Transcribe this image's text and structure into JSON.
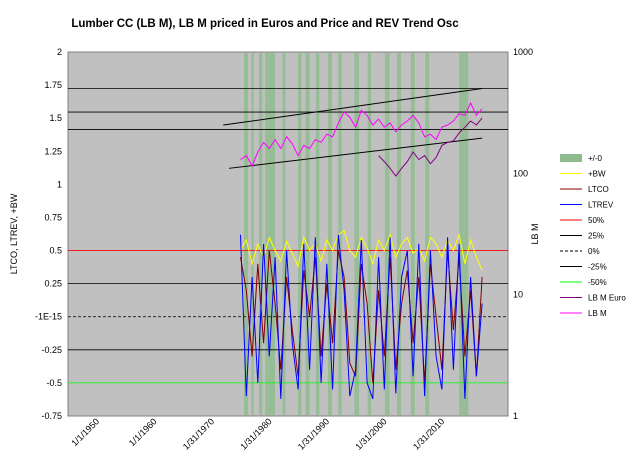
{
  "chart_data": {
    "type": "line",
    "title": "Lumber CC (LB M), LB M priced in Euros and Price and REV Trend Osc",
    "ylabel": "LTCO, LTREV, +BW",
    "y2label": "LB M",
    "ylim": [
      -0.75,
      2
    ],
    "y_ticks": [
      "2",
      "1.75",
      "1.5",
      "1.25",
      "1",
      "0.75",
      "0.5",
      "0.25",
      "-1E-15",
      "-0.25",
      "-0.5",
      "-0.75"
    ],
    "y_tick_values": [
      2,
      1.75,
      1.5,
      1.25,
      1,
      0.75,
      0.5,
      0.25,
      0,
      -0.25,
      -0.5,
      -0.75
    ],
    "y2_scale": "log",
    "y2lim": [
      1,
      1000
    ],
    "y2_ticks": [
      "1000",
      "100",
      "10",
      "1"
    ],
    "y2_tick_values": [
      1000,
      100,
      10,
      1
    ],
    "x_ticks": [
      "1/1/1950",
      "1/1/1960",
      "1/31/1970",
      "1/31/1980",
      "1/31/1990",
      "1/31/2000",
      "1/31/2010"
    ],
    "x_tick_values": [
      1950,
      1960,
      1970,
      1980,
      1990,
      2000,
      2010
    ],
    "xlim": [
      1945,
      2021.5
    ],
    "legend_position": "right",
    "legend": [
      {
        "name": "+/-0",
        "color": "#8fbc8f",
        "style": "band"
      },
      {
        "name": "+BW",
        "color": "#ffff00",
        "style": "line"
      },
      {
        "name": "LTCO",
        "color": "#800000",
        "style": "line"
      },
      {
        "name": "LTREV",
        "color": "#0000ff",
        "style": "line"
      },
      {
        "name": "50%",
        "color": "#ff0000",
        "style": "line"
      },
      {
        "name": "25%",
        "color": "#000000",
        "style": "line"
      },
      {
        "name": "0%",
        "color": "#000000",
        "style": "dashed"
      },
      {
        "name": "-25%",
        "color": "#000000",
        "style": "line"
      },
      {
        "name": "-50%",
        "color": "#00ff00",
        "style": "line"
      },
      {
        "name": "LB M Euro",
        "color": "#800080",
        "style": "line"
      },
      {
        "name": "LB M",
        "color": "#ff00ff",
        "style": "line"
      }
    ],
    "reference_levels": {
      "50%": 0.5,
      "25%": 0.25,
      "0%": 0,
      "-25%": -0.25,
      "-50%": -0.5
    },
    "right_axis_gridlines": [
      500,
      320,
      230
    ],
    "trend_channel": {
      "upper": {
        "x": [
          1972,
          2017
        ],
        "y": [
          250,
          500
        ]
      },
      "lower": {
        "x": [
          1973,
          2017
        ],
        "y": [
          110,
          195
        ]
      }
    },
    "neutral_bands": [
      {
        "from": 1975.6,
        "to": 1976.3
      },
      {
        "from": 1976.9,
        "to": 1977.3
      },
      {
        "from": 1978.2,
        "to": 1978.8
      },
      {
        "from": 1979.3,
        "to": 1981.0
      },
      {
        "from": 1982.3,
        "to": 1982.8
      },
      {
        "from": 1985.0,
        "to": 1985.6
      },
      {
        "from": 1986.3,
        "to": 1987.0
      },
      {
        "from": 1988.1,
        "to": 1988.7
      },
      {
        "from": 1990.2,
        "to": 1990.9
      },
      {
        "from": 1992.0,
        "to": 1992.6
      },
      {
        "from": 1994.8,
        "to": 1995.6
      },
      {
        "from": 1997.1,
        "to": 1997.7
      },
      {
        "from": 2000.1,
        "to": 2000.9
      },
      {
        "from": 2002.2,
        "to": 2002.9
      },
      {
        "from": 2004.6,
        "to": 2005.3
      },
      {
        "from": 2007.1,
        "to": 2007.8
      },
      {
        "from": 2013.0,
        "to": 2014.6
      }
    ],
    "series": [
      {
        "name": "LB M",
        "axis": "right",
        "color": "#ff00ff",
        "x": [
          1975,
          1976,
          1977,
          1978,
          1979,
          1980,
          1981,
          1982,
          1983,
          1984,
          1985,
          1986,
          1987,
          1988,
          1989,
          1990,
          1991,
          1992,
          1993,
          1994,
          1995,
          1996,
          1997,
          1998,
          1999,
          2000,
          2001,
          2002,
          2003,
          2004,
          2005,
          2006,
          2007,
          2008,
          2009,
          2010,
          2011,
          2012,
          2013,
          2014,
          2015,
          2016,
          2017
        ],
        "y": [
          130,
          140,
          115,
          150,
          180,
          160,
          190,
          160,
          200,
          175,
          140,
          170,
          160,
          190,
          180,
          210,
          200,
          260,
          320,
          290,
          240,
          330,
          300,
          250,
          280,
          240,
          260,
          220,
          250,
          270,
          300,
          260,
          200,
          210,
          190,
          240,
          250,
          270,
          310,
          300,
          380,
          300,
          340
        ]
      },
      {
        "name": "LB M Euro",
        "axis": "right",
        "color": "#800080",
        "x": [
          1999,
          2000,
          2001,
          2002,
          2003,
          2004,
          2005,
          2006,
          2007,
          2008,
          2009,
          2010,
          2011,
          2012,
          2013,
          2014,
          2015,
          2016,
          2017
        ],
        "y": [
          140,
          125,
          110,
          95,
          110,
          125,
          150,
          130,
          140,
          120,
          135,
          170,
          180,
          185,
          215,
          240,
          270,
          250,
          285
        ]
      },
      {
        "name": "+BW",
        "axis": "left",
        "color": "#ffff00",
        "x": [
          1975,
          1976,
          1977,
          1978,
          1979,
          1980,
          1981,
          1982,
          1983,
          1984,
          1985,
          1986,
          1987,
          1988,
          1989,
          1990,
          1991,
          1992,
          1993,
          1994,
          1995,
          1996,
          1997,
          1998,
          1999,
          2000,
          2001,
          2002,
          2003,
          2004,
          2005,
          2006,
          2007,
          2008,
          2009,
          2010,
          2011,
          2012,
          2013,
          2014,
          2015,
          2016,
          2017
        ],
        "y": [
          0.5,
          0.58,
          0.4,
          0.55,
          0.45,
          0.6,
          0.5,
          0.42,
          0.57,
          0.48,
          0.38,
          0.6,
          0.5,
          0.55,
          0.42,
          0.58,
          0.5,
          0.62,
          0.65,
          0.5,
          0.45,
          0.6,
          0.52,
          0.4,
          0.58,
          0.5,
          0.62,
          0.45,
          0.55,
          0.6,
          0.48,
          0.52,
          0.42,
          0.6,
          0.55,
          0.45,
          0.58,
          0.5,
          0.62,
          0.4,
          0.58,
          0.45,
          0.35
        ]
      },
      {
        "name": "LTCO",
        "axis": "left",
        "color": "#800000",
        "x": [
          1975,
          1976,
          1977,
          1978,
          1979,
          1980,
          1981,
          1982,
          1983,
          1984,
          1985,
          1986,
          1987,
          1988,
          1989,
          1990,
          1991,
          1992,
          1993,
          1994,
          1995,
          1996,
          1997,
          1998,
          1999,
          2000,
          2001,
          2002,
          2003,
          2004,
          2005,
          2006,
          2007,
          2008,
          2009,
          2010,
          2011,
          2012,
          2013,
          2014,
          2015,
          2016,
          2017
        ],
        "y": [
          0.45,
          0.2,
          -0.3,
          0.4,
          -0.2,
          0.5,
          0.1,
          -0.4,
          0.3,
          -0.1,
          -0.45,
          0.35,
          0.0,
          0.45,
          -0.3,
          0.25,
          -0.2,
          0.5,
          0.3,
          -0.35,
          -0.45,
          0.4,
          0.1,
          -0.5,
          0.2,
          -0.3,
          0.45,
          -0.4,
          0.1,
          0.35,
          -0.2,
          0.3,
          -0.5,
          0.4,
          0.0,
          -0.4,
          0.5,
          -0.1,
          0.45,
          -0.3,
          0.2,
          -0.45,
          0.3
        ]
      },
      {
        "name": "LTREV",
        "axis": "left",
        "color": "#0000ff",
        "x": [
          1975,
          1976,
          1977,
          1978,
          1979,
          1980,
          1981,
          1982,
          1983,
          1984,
          1985,
          1986,
          1987,
          1988,
          1989,
          1990,
          1991,
          1992,
          1993,
          1994,
          1995,
          1996,
          1997,
          1998,
          1999,
          2000,
          2001,
          2002,
          2003,
          2004,
          2005,
          2006,
          2007,
          2008,
          2009,
          2010,
          2011,
          2012,
          2013,
          2014,
          2015,
          2016,
          2017
        ],
        "y": [
          0.62,
          -0.6,
          0.3,
          -0.5,
          0.55,
          -0.3,
          0.45,
          -0.62,
          0.5,
          -0.2,
          -0.55,
          0.55,
          -0.4,
          0.6,
          -0.5,
          0.4,
          -0.55,
          0.62,
          0.2,
          -0.6,
          -0.4,
          0.58,
          -0.5,
          -0.62,
          0.45,
          -0.55,
          0.6,
          -0.58,
          0.3,
          0.5,
          -0.45,
          0.55,
          -0.6,
          0.5,
          -0.3,
          -0.55,
          0.6,
          -0.4,
          0.55,
          -0.62,
          0.3,
          -0.45,
          0.1
        ]
      }
    ]
  }
}
